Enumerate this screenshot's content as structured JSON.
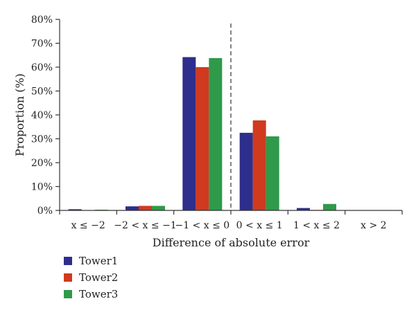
{
  "chart_data": {
    "type": "bar",
    "title": "",
    "xlabel": "Difference of absolute error",
    "ylabel": "Proportion (%)",
    "ylim": [
      0,
      80
    ],
    "yticks": [
      "0%",
      "10%",
      "20%",
      "30%",
      "40%",
      "50%",
      "60%",
      "70%",
      "80%"
    ],
    "categories": [
      "x ≤ −2",
      "−2 < x ≤ −1",
      "−1 < x ≤ 0",
      "0 < x ≤ 1",
      "1 < x ≤ 2",
      "x > 2"
    ],
    "reference_line": {
      "between_categories": [
        2,
        3
      ],
      "style": "dashed"
    },
    "legend_position": "bottom-left",
    "series": [
      {
        "name": "Tower1",
        "color": "#2e2e8c",
        "values": [
          0.5,
          1.7,
          64.2,
          32.5,
          1.0,
          0
        ]
      },
      {
        "name": "Tower2",
        "color": "#d03a1f",
        "values": [
          0,
          1.9,
          60.0,
          37.7,
          0.2,
          0
        ]
      },
      {
        "name": "Tower3",
        "color": "#2e9a4a",
        "values": [
          0.3,
          1.9,
          63.8,
          31.0,
          2.7,
          0
        ]
      }
    ]
  }
}
